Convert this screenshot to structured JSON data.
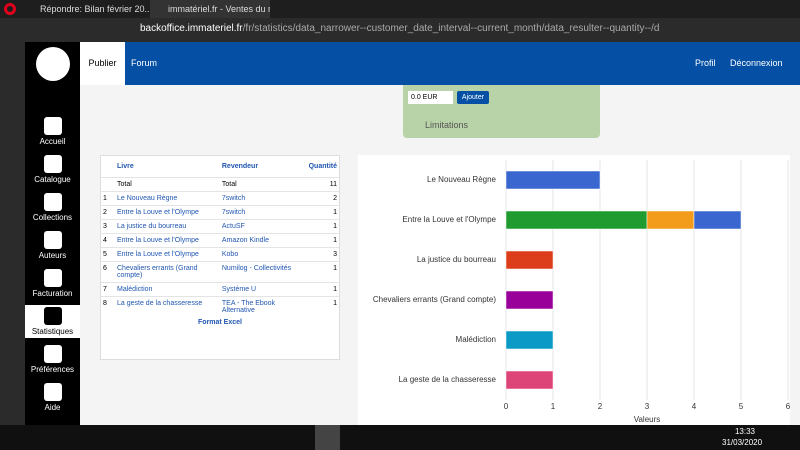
{
  "browser": {
    "tabs": [
      "Répondre: Bilan février 20...",
      "immatériel.fr - Ventes du m..."
    ],
    "url_domain": "backoffice.immateriel.fr",
    "url_path": "/fr/statistics/data_narrower--customer_date_interval--current_month/data_resulter--quantity--/data_grouper--"
  },
  "sidebar": [
    "Accueil",
    "Catalogue",
    "Collections",
    "Auteurs",
    "Facturation",
    "Statistiques",
    "Préférences",
    "Aide"
  ],
  "nav": {
    "left": [
      "Publier",
      "Forum"
    ],
    "right": [
      "Profil",
      "Déconnexion"
    ]
  },
  "form": {
    "amount": "0.0 EUR",
    "button": "Ajouter",
    "section": "Limitations"
  },
  "table": {
    "headers": [
      "Livre",
      "Revendeur",
      "Quantité"
    ],
    "total_row": [
      "Total",
      "Total",
      11
    ],
    "rows": [
      [
        1,
        "Le Nouveau Règne",
        "7switch",
        2
      ],
      [
        2,
        "Entre la Louve et l'Olympe",
        "7switch",
        1
      ],
      [
        3,
        "La justice du bourreau",
        "ActuSF",
        1
      ],
      [
        4,
        "Entre la Louve et l'Olympe",
        "Amazon Kindle",
        1
      ],
      [
        5,
        "Entre la Louve et l'Olympe",
        "Kobo",
        3
      ],
      [
        6,
        "Chevaliers errants (Grand compte)",
        "Numilog - Collectivités",
        1
      ],
      [
        7,
        "Malédiction",
        "Système U",
        1
      ],
      [
        8,
        "La geste de la chasseresse",
        "TEA - The Ebook Alternative",
        1
      ]
    ],
    "footer": "Format Excel"
  },
  "chart_data": {
    "type": "bar",
    "orientation": "horizontal",
    "stacked": true,
    "x_label": "Valeurs",
    "categories": [
      "Le Nouveau Règne",
      "Entre la Louve et l'Olympe",
      "La justice du bourreau",
      "Chevaliers errants (Grand compte)",
      "Malédiction",
      "La geste de la chasseresse"
    ],
    "series": [
      {
        "color": "#1f9b2f",
        "values": [
          null,
          3,
          null,
          null,
          null,
          null
        ]
      },
      {
        "color": "#f39c1b",
        "values": [
          null,
          1,
          null,
          null,
          null,
          null
        ]
      },
      {
        "color": "#3a66d0",
        "values": [
          2,
          1,
          null,
          null,
          null,
          null
        ]
      },
      {
        "color": "#dc3d1a",
        "values": [
          null,
          null,
          1,
          null,
          null,
          null
        ]
      },
      {
        "color": "#990099",
        "values": [
          null,
          null,
          null,
          1,
          null,
          null
        ]
      },
      {
        "color": "#0b99c6",
        "values": [
          null,
          null,
          null,
          null,
          1,
          null
        ]
      },
      {
        "color": "#dd4477",
        "values": [
          null,
          null,
          null,
          null,
          null,
          1
        ]
      }
    ],
    "xlim": [
      0,
      6
    ],
    "xticks": [
      0,
      1,
      2,
      3,
      4,
      5,
      6
    ],
    "grid": true
  },
  "taskbar": {
    "time": "13:33",
    "date": "31/03/2020"
  }
}
